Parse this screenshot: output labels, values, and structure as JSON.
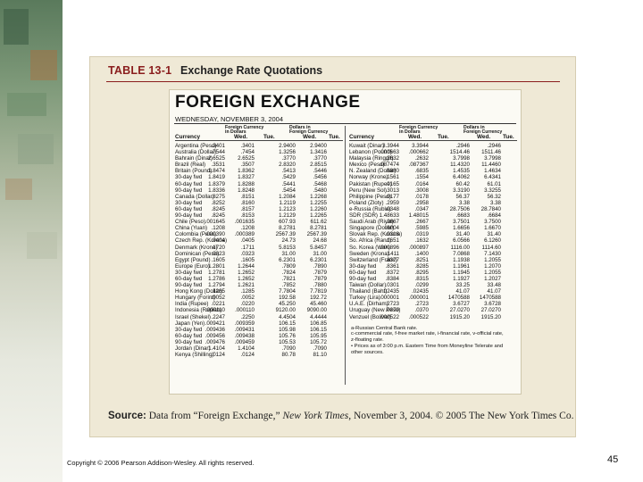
{
  "table": {
    "label": "TABLE 13-1",
    "title": "Exchange Rate Quotations"
  },
  "paper": {
    "heading": "FOREIGN EXCHANGE",
    "date": "WEDNESDAY, NOVEMBER 3, 2004",
    "group1": [
      "Foreign Currency",
      "in Dollars"
    ],
    "group2": [
      "Dollars in",
      "Foreign Currency"
    ],
    "col_currency": "Currency",
    "col_wed": "Wed.",
    "col_tue": "Tue."
  },
  "left_rows": [
    {
      "c": "Argentina (Peso)",
      "a": ".3401",
      "b": ".3401",
      "d": "2.9400",
      "e": "2.9400"
    },
    {
      "c": "Australia (Dollar)",
      "a": ".7544",
      "b": ".7454",
      "d": "1.3256",
      "e": "1.3416"
    },
    {
      "c": "Bahrain (Dinar)",
      "a": "2.6525",
      "b": "2.6525",
      "d": ".3770",
      "e": ".3770"
    },
    {
      "c": "Brazil (Real)",
      "a": ".3531",
      "b": ".3507",
      "d": "2.8320",
      "e": "2.8515"
    },
    {
      "c": "Britain (Pound)",
      "a": "1.8474",
      "b": "1.8362",
      "d": ".5413",
      "e": ".5446"
    },
    {
      "c": "30-day fwd",
      "a": "1.8419",
      "b": "1.8327",
      "d": ".5429",
      "e": ".5456"
    },
    {
      "c": "60-day fwd",
      "a": "1.8379",
      "b": "1.8288",
      "d": ".5441",
      "e": ".5468"
    },
    {
      "c": "90-day fwd",
      "a": "1.8336",
      "b": "1.8248",
      "d": ".5454",
      "e": ".5480"
    },
    {
      "c": "Canada (Dollar)",
      "a": ".8275",
      "b": ".8151",
      "d": "1.2084",
      "e": "1.2268"
    },
    {
      "c": "30-day fwd",
      "a": ".8252",
      "b": ".8160",
      "d": "1.2119",
      "e": "1.2255"
    },
    {
      "c": "60-day fwd",
      "a": ".8245",
      "b": ".8157",
      "d": "1.2123",
      "e": "1.2260"
    },
    {
      "c": "90-day fwd",
      "a": ".8245",
      "b": ".8153",
      "d": "1.2129",
      "e": "1.2265"
    },
    {
      "c": "Chile (Peso)",
      "a": ".001645",
      "b": ".001635",
      "d": "607.93",
      "e": "611.62"
    },
    {
      "c": "China (Yuan)",
      "a": ".1208",
      "b": ".1208",
      "d": "8.2781",
      "e": "8.2781"
    },
    {
      "c": "Colombia (Peso)",
      "a": ".000390",
      "b": ".000389",
      "d": "2567.39",
      "e": "2567.39"
    },
    {
      "c": "Czech Rep. (Koruna)",
      "a": ".0404",
      "b": ".0405",
      "d": "24.73",
      "e": "24.68"
    },
    {
      "c": "Denmark (Krone)",
      "a": ".1720",
      "b": ".1711",
      "d": "5.8153",
      "e": "5.8457"
    },
    {
      "c": "Dominican (Peso)",
      "a": ".0323",
      "b": ".0323",
      "d": "31.00",
      "e": "31.00"
    },
    {
      "c": "Egypt (Pound)",
      "a": ".1605",
      "b": ".1605",
      "d": "6.2301",
      "e": "6.2301"
    },
    {
      "c": "Europe (Euro)",
      "a": "1.2801",
      "b": "1.2644",
      "d": ".7809",
      "e": ".7890"
    },
    {
      "c": "30-day fwd",
      "a": "1.2781",
      "b": "1.2652",
      "d": ".7824",
      "e": ".7879"
    },
    {
      "c": "60-day fwd",
      "a": "1.2786",
      "b": "1.2652",
      "d": ".7821",
      "e": ".7879"
    },
    {
      "c": "90-day fwd",
      "a": "1.2794",
      "b": "1.2621",
      "d": ".7852",
      "e": ".7880"
    },
    {
      "c": "Hong Kong (Dollar)",
      "a": ".1285",
      "b": ".1285",
      "d": "7.7804",
      "e": "7.7819"
    },
    {
      "c": "Hungary (Forint)",
      "a": ".0052",
      "b": ".0052",
      "d": "192.58",
      "e": "192.72"
    },
    {
      "c": "India (Rupee)",
      "a": ".0221",
      "b": ".0220",
      "d": "45.250",
      "e": "45.460"
    },
    {
      "c": "Indonesia (Rupiah)",
      "a": ".000110",
      "b": ".000110",
      "d": "9120.00",
      "e": "9090.00"
    },
    {
      "c": "Israel (Shekel)",
      "a": ".2247",
      "b": ".2250",
      "d": "4.4504",
      "e": "4.4444"
    },
    {
      "c": "Japan (Yen)",
      "a": ".009421",
      "b": ".009359",
      "d": "106.15",
      "e": "106.85"
    },
    {
      "c": "30-day fwd",
      "a": ".009436",
      "b": ".009431",
      "d": "105.98",
      "e": "106.15"
    },
    {
      "c": "60-day fwd",
      "a": ".009456",
      "b": ".009438",
      "d": "105.76",
      "e": "105.95"
    },
    {
      "c": "90-day fwd",
      "a": ".009476",
      "b": ".009459",
      "d": "105.53",
      "e": "105.72"
    },
    {
      "c": "Jordan (Dinar)",
      "a": "1.4104",
      "b": "1.4104",
      "d": ".7090",
      "e": ".7090"
    },
    {
      "c": "Kenya (Shilling)",
      "a": ".0124",
      "b": ".0124",
      "d": "80.78",
      "e": "81.10"
    }
  ],
  "right_rows": [
    {
      "c": "Kuwait (Dinar)",
      "a": "3.3944",
      "b": "3.3944",
      "d": ".2946",
      "e": ".2946"
    },
    {
      "c": "Lebanon (Pound)",
      "a": ".000663",
      "b": ".000662",
      "d": "1514.46",
      "e": "1511.46"
    },
    {
      "c": "Malaysia (Ringgit)",
      "a": ".2632",
      "b": ".2632",
      "d": "3.7998",
      "e": "3.7998"
    },
    {
      "c": "Mexico (Peso)",
      "a": ".087474",
      "b": ".087367",
      "d": "11.4320",
      "e": "11.4460"
    },
    {
      "c": "N. Zealand (Dollar)",
      "a": ".6880",
      "b": ".6835",
      "d": "1.4535",
      "e": "1.4634"
    },
    {
      "c": "Norway (Krone)",
      "a": ".1561",
      "b": ".1554",
      "d": "6.4062",
      "e": "6.4341"
    },
    {
      "c": "Pakistan (Rupee)",
      "a": ".0165",
      "b": ".0164",
      "d": "60.42",
      "e": "61.01"
    },
    {
      "c": "Peru (New Sol)",
      "a": ".3013",
      "b": ".3008",
      "d": "3.3190",
      "e": "3.3255"
    },
    {
      "c": "Philippine (Peso)",
      "a": ".0177",
      "b": ".0178",
      "d": "56.37",
      "e": "56.32"
    },
    {
      "c": "Poland (Zloty)",
      "a": ".2959",
      "b": ".2958",
      "d": "3.38",
      "e": "3.38"
    },
    {
      "c": "e-Russia (Ruble)",
      "a": ".0348",
      "b": ".0347",
      "d": "28.7506",
      "e": "28.7840"
    },
    {
      "c": "SDR (SDR)",
      "a": "1.48633",
      "b": "1.48015",
      "d": ".6683",
      "e": ".6684"
    },
    {
      "c": "Saudi Arab (Riyal)",
      "a": ".2667",
      "b": ".2667",
      "d": "3.7501",
      "e": "3.7500"
    },
    {
      "c": "Singapore (Dollar)",
      "a": ".6004",
      "b": ".5985",
      "d": "1.6656",
      "e": "1.6670"
    },
    {
      "c": "Slovak Rep. (Koruna)",
      "a": ".0318",
      "b": ".0319",
      "d": "31.40",
      "e": "31.40"
    },
    {
      "c": "So. Africa (Rand)",
      "a": ".1651",
      "b": ".1632",
      "d": "6.0566",
      "e": "6.1260"
    },
    {
      "c": "So. Korea (Won)",
      "a": ".000896",
      "b": ".000897",
      "d": "1116.00",
      "e": "1114.60"
    },
    {
      "c": "Sweden (Krona)",
      "a": ".1411",
      "b": ".1400",
      "d": "7.0868",
      "e": "7.1430"
    },
    {
      "c": "Switzerland (Franc)",
      "a": ".8377",
      "b": ".8251",
      "d": "1.1938",
      "e": "1.2055"
    },
    {
      "c": "30-day fwd",
      "a": ".8361",
      "b": ".8285",
      "d": "1.1961",
      "e": "1.2070"
    },
    {
      "c": "60-day fwd",
      "a": ".8372",
      "b": ".8295",
      "d": "1.1945",
      "e": "1.2055"
    },
    {
      "c": "90-day fwd",
      "a": ".8384",
      "b": ".8315",
      "d": "1.1927",
      "e": "1.2027"
    },
    {
      "c": "Taiwan (Dollar)",
      "a": ".0301",
      "b": ".0299",
      "d": "33.25",
      "e": "33.48"
    },
    {
      "c": "Thailand (Baht)",
      "a": ".02435",
      "b": ".02435",
      "d": "41.07",
      "e": "41.07"
    },
    {
      "c": "Turkey (Lira)",
      "a": ".000001",
      "b": ".000001",
      "d": "1470588",
      "e": "1470588"
    },
    {
      "c": "U.A.E. (Dirham)",
      "a": ".2723",
      "b": ".2723",
      "d": "3.6727",
      "e": "3.6728"
    },
    {
      "c": "Uruguay (New Peso)",
      "a": ".0370",
      "b": ".0370",
      "d": "27.0270",
      "e": "27.0270"
    },
    {
      "c": "Venzuel (Bolivar)",
      "a": ".000522",
      "b": ".000522",
      "d": "1915.20",
      "e": "1915.20"
    }
  ],
  "notes": [
    "a-Russian Central Bank rate.",
    "c-commercial rate, f-free market rate, i-financial rate, v-official rate,",
    "z-floating rate.",
    "• Prices as of 3:00 p.m. Eastern Time from Moneyline Telerate and",
    "other sources."
  ],
  "source": {
    "label": "Source:",
    "text_before": " Data from “Foreign Exchange,” ",
    "publication": "New York Times",
    "text_after": ", November 3, 2004. © 2005 The New York Times Co."
  },
  "footer": {
    "copyright": "Copyright © 2006 Pearson Addison-Wesley. All rights reserved.",
    "page_number": "45"
  }
}
